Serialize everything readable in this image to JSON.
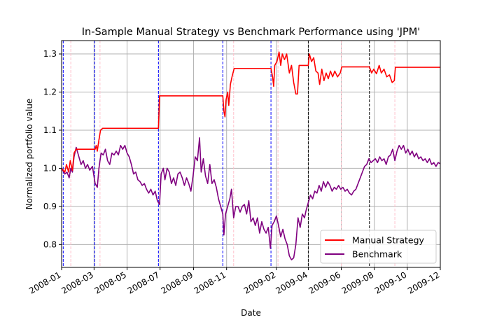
{
  "chart_data": {
    "type": "line",
    "title": "In-Sample Manual Strategy vs Benchmark Performance using 'JPM'",
    "xlabel": "Date",
    "ylabel": "Normalized portfolio value",
    "xlim": [
      "2008-01-01",
      "2009-12-01"
    ],
    "ylim": [
      0.74,
      1.335
    ],
    "x_ticks": [
      "2008-01",
      "2008-03",
      "2008-05",
      "2008-07",
      "2008-09",
      "2008-11",
      "2009-02",
      "2009-04",
      "2009-06",
      "2009-08",
      "2009-10",
      "2009-12"
    ],
    "y_ticks": [
      0.8,
      0.9,
      1.0,
      1.1,
      1.2,
      1.3
    ],
    "grid": true,
    "legend_position": "lower right",
    "series": [
      {
        "name": "Manual Strategy",
        "color": "#ff0000",
        "points": [
          [
            "2008-01-01",
            1.0
          ],
          [
            "2008-01-07",
            0.99
          ],
          [
            "2008-01-10",
            1.01
          ],
          [
            "2008-01-14",
            0.99
          ],
          [
            "2008-01-17",
            1.02
          ],
          [
            "2008-01-21",
            0.995
          ],
          [
            "2008-01-24",
            1.04
          ],
          [
            "2008-01-28",
            1.05
          ],
          [
            "2008-02-05",
            1.05
          ],
          [
            "2008-02-20",
            1.05
          ],
          [
            "2008-03-03",
            1.05
          ],
          [
            "2008-03-05",
            1.06
          ],
          [
            "2008-03-07",
            1.045
          ],
          [
            "2008-03-10",
            1.075
          ],
          [
            "2008-03-13",
            1.1
          ],
          [
            "2008-03-17",
            1.105
          ],
          [
            "2008-06-28",
            1.105
          ],
          [
            "2008-06-30",
            1.19
          ],
          [
            "2008-10-25",
            1.19
          ],
          [
            "2008-10-27",
            1.15
          ],
          [
            "2008-10-29",
            1.135
          ],
          [
            "2008-10-31",
            1.18
          ],
          [
            "2008-11-03",
            1.2
          ],
          [
            "2008-11-05",
            1.165
          ],
          [
            "2008-11-08",
            1.22
          ],
          [
            "2008-11-11",
            1.24
          ],
          [
            "2008-11-15",
            1.262
          ],
          [
            "2009-01-22",
            1.262
          ],
          [
            "2009-01-25",
            1.24
          ],
          [
            "2009-01-27",
            1.215
          ],
          [
            "2009-01-29",
            1.27
          ],
          [
            "2009-02-02",
            1.28
          ],
          [
            "2009-02-06",
            1.305
          ],
          [
            "2009-02-09",
            1.27
          ],
          [
            "2009-02-12",
            1.3
          ],
          [
            "2009-02-16",
            1.285
          ],
          [
            "2009-02-20",
            1.3
          ],
          [
            "2009-02-25",
            1.25
          ],
          [
            "2009-03-01",
            1.27
          ],
          [
            "2009-03-05",
            1.225
          ],
          [
            "2009-03-09",
            1.195
          ],
          [
            "2009-03-12",
            1.195
          ],
          [
            "2009-03-15",
            1.27
          ],
          [
            "2009-04-01",
            1.27
          ],
          [
            "2009-04-03",
            1.3
          ],
          [
            "2009-04-07",
            1.28
          ],
          [
            "2009-04-11",
            1.29
          ],
          [
            "2009-04-15",
            1.255
          ],
          [
            "2009-04-19",
            1.25
          ],
          [
            "2009-04-22",
            1.22
          ],
          [
            "2009-04-26",
            1.26
          ],
          [
            "2009-04-30",
            1.23
          ],
          [
            "2009-05-04",
            1.25
          ],
          [
            "2009-05-08",
            1.235
          ],
          [
            "2009-05-12",
            1.255
          ],
          [
            "2009-05-16",
            1.24
          ],
          [
            "2009-05-20",
            1.255
          ],
          [
            "2009-05-25",
            1.24
          ],
          [
            "2009-05-30",
            1.25
          ],
          [
            "2009-06-02",
            1.266
          ],
          [
            "2009-07-23",
            1.266
          ],
          [
            "2009-07-27",
            1.25
          ],
          [
            "2009-07-31",
            1.26
          ],
          [
            "2009-08-05",
            1.248
          ],
          [
            "2009-08-10",
            1.27
          ],
          [
            "2009-08-14",
            1.25
          ],
          [
            "2009-08-19",
            1.26
          ],
          [
            "2009-08-24",
            1.24
          ],
          [
            "2009-08-29",
            1.245
          ],
          [
            "2009-09-03",
            1.225
          ],
          [
            "2009-09-07",
            1.23
          ],
          [
            "2009-09-09",
            1.265
          ],
          [
            "2009-12-01",
            1.265
          ]
        ]
      },
      {
        "name": "Benchmark",
        "color": "#800080",
        "points": [
          [
            "2008-01-01",
            1.0
          ],
          [
            "2008-01-07",
            0.985
          ],
          [
            "2008-01-11",
            0.99
          ],
          [
            "2008-01-15",
            0.975
          ],
          [
            "2008-01-18",
            1.0
          ],
          [
            "2008-01-21",
            0.99
          ],
          [
            "2008-01-24",
            1.03
          ],
          [
            "2008-01-28",
            1.055
          ],
          [
            "2008-02-02",
            1.03
          ],
          [
            "2008-02-06",
            1.01
          ],
          [
            "2008-02-10",
            1.02
          ],
          [
            "2008-02-14",
            1.0
          ],
          [
            "2008-02-18",
            1.01
          ],
          [
            "2008-02-22",
            0.995
          ],
          [
            "2008-02-27",
            1.005
          ],
          [
            "2008-03-03",
            0.96
          ],
          [
            "2008-03-07",
            0.95
          ],
          [
            "2008-03-10",
            1.0
          ],
          [
            "2008-03-14",
            1.04
          ],
          [
            "2008-03-18",
            1.035
          ],
          [
            "2008-03-22",
            1.05
          ],
          [
            "2008-03-26",
            1.02
          ],
          [
            "2008-03-30",
            1.01
          ],
          [
            "2008-04-03",
            1.04
          ],
          [
            "2008-04-07",
            1.035
          ],
          [
            "2008-04-11",
            1.045
          ],
          [
            "2008-04-15",
            1.035
          ],
          [
            "2008-04-19",
            1.06
          ],
          [
            "2008-04-23",
            1.05
          ],
          [
            "2008-04-27",
            1.06
          ],
          [
            "2008-05-01",
            1.04
          ],
          [
            "2008-05-05",
            1.03
          ],
          [
            "2008-05-09",
            1.01
          ],
          [
            "2008-05-13",
            0.985
          ],
          [
            "2008-05-17",
            0.99
          ],
          [
            "2008-05-21",
            0.97
          ],
          [
            "2008-05-25",
            0.965
          ],
          [
            "2008-05-29",
            0.955
          ],
          [
            "2008-06-02",
            0.96
          ],
          [
            "2008-06-06",
            0.945
          ],
          [
            "2008-06-10",
            0.935
          ],
          [
            "2008-06-14",
            0.945
          ],
          [
            "2008-06-18",
            0.93
          ],
          [
            "2008-06-22",
            0.94
          ],
          [
            "2008-06-26",
            0.915
          ],
          [
            "2008-06-30",
            0.905
          ],
          [
            "2008-07-03",
            0.985
          ],
          [
            "2008-07-07",
            1.0
          ],
          [
            "2008-07-10",
            0.97
          ],
          [
            "2008-07-14",
            1.0
          ],
          [
            "2008-07-18",
            0.99
          ],
          [
            "2008-07-22",
            0.96
          ],
          [
            "2008-07-26",
            0.975
          ],
          [
            "2008-07-30",
            0.955
          ],
          [
            "2008-08-03",
            0.985
          ],
          [
            "2008-08-07",
            0.99
          ],
          [
            "2008-08-11",
            0.975
          ],
          [
            "2008-08-15",
            0.955
          ],
          [
            "2008-08-19",
            0.975
          ],
          [
            "2008-08-23",
            0.96
          ],
          [
            "2008-08-27",
            0.94
          ],
          [
            "2008-08-31",
            0.98
          ],
          [
            "2008-09-04",
            1.03
          ],
          [
            "2008-09-08",
            1.02
          ],
          [
            "2008-09-12",
            1.08
          ],
          [
            "2008-09-15",
            0.99
          ],
          [
            "2008-09-19",
            1.025
          ],
          [
            "2008-09-23",
            0.98
          ],
          [
            "2008-09-27",
            0.96
          ],
          [
            "2008-10-01",
            1.01
          ],
          [
            "2008-10-05",
            0.96
          ],
          [
            "2008-10-09",
            0.97
          ],
          [
            "2008-10-13",
            0.95
          ],
          [
            "2008-10-17",
            0.92
          ],
          [
            "2008-10-21",
            0.9
          ],
          [
            "2008-10-25",
            0.88
          ],
          [
            "2008-10-27",
            0.825
          ],
          [
            "2008-10-30",
            0.88
          ],
          [
            "2008-11-03",
            0.9
          ],
          [
            "2008-11-07",
            0.92
          ],
          [
            "2008-11-10",
            0.945
          ],
          [
            "2008-11-14",
            0.87
          ],
          [
            "2008-11-18",
            0.9
          ],
          [
            "2008-11-22",
            0.9
          ],
          [
            "2008-11-26",
            0.885
          ],
          [
            "2008-11-30",
            0.9
          ],
          [
            "2008-12-04",
            0.905
          ],
          [
            "2008-12-08",
            0.88
          ],
          [
            "2008-12-12",
            0.915
          ],
          [
            "2008-12-16",
            0.86
          ],
          [
            "2008-12-20",
            0.87
          ],
          [
            "2008-12-24",
            0.85
          ],
          [
            "2008-12-28",
            0.87
          ],
          [
            "2009-01-01",
            0.83
          ],
          [
            "2009-01-05",
            0.86
          ],
          [
            "2009-01-09",
            0.84
          ],
          [
            "2009-01-13",
            0.83
          ],
          [
            "2009-01-17",
            0.845
          ],
          [
            "2009-01-21",
            0.79
          ],
          [
            "2009-01-24",
            0.85
          ],
          [
            "2009-01-28",
            0.86
          ],
          [
            "2009-02-01",
            0.875
          ],
          [
            "2009-02-05",
            0.85
          ],
          [
            "2009-02-09",
            0.82
          ],
          [
            "2009-02-13",
            0.84
          ],
          [
            "2009-02-17",
            0.815
          ],
          [
            "2009-02-21",
            0.8
          ],
          [
            "2009-02-25",
            0.77
          ],
          [
            "2009-03-01",
            0.76
          ],
          [
            "2009-03-05",
            0.765
          ],
          [
            "2009-03-09",
            0.8
          ],
          [
            "2009-03-13",
            0.87
          ],
          [
            "2009-03-17",
            0.845
          ],
          [
            "2009-03-21",
            0.88
          ],
          [
            "2009-03-25",
            0.87
          ],
          [
            "2009-03-28",
            0.89
          ],
          [
            "2009-04-01",
            0.91
          ],
          [
            "2009-04-05",
            0.93
          ],
          [
            "2009-04-09",
            0.92
          ],
          [
            "2009-04-13",
            0.94
          ],
          [
            "2009-04-17",
            0.935
          ],
          [
            "2009-04-21",
            0.955
          ],
          [
            "2009-04-25",
            0.94
          ],
          [
            "2009-04-29",
            0.965
          ],
          [
            "2009-05-03",
            0.95
          ],
          [
            "2009-05-07",
            0.965
          ],
          [
            "2009-05-11",
            0.955
          ],
          [
            "2009-05-15",
            0.94
          ],
          [
            "2009-05-19",
            0.95
          ],
          [
            "2009-05-23",
            0.945
          ],
          [
            "2009-05-27",
            0.955
          ],
          [
            "2009-05-31",
            0.945
          ],
          [
            "2009-06-04",
            0.95
          ],
          [
            "2009-06-08",
            0.94
          ],
          [
            "2009-06-12",
            0.945
          ],
          [
            "2009-06-16",
            0.935
          ],
          [
            "2009-06-20",
            0.93
          ],
          [
            "2009-06-24",
            0.94
          ],
          [
            "2009-06-28",
            0.945
          ],
          [
            "2009-07-02",
            0.96
          ],
          [
            "2009-07-06",
            0.975
          ],
          [
            "2009-07-10",
            0.99
          ],
          [
            "2009-07-14",
            1.005
          ],
          [
            "2009-07-18",
            1.01
          ],
          [
            "2009-07-22",
            1.025
          ],
          [
            "2009-07-26",
            1.015
          ],
          [
            "2009-07-30",
            1.02
          ],
          [
            "2009-08-03",
            1.025
          ],
          [
            "2009-08-07",
            1.015
          ],
          [
            "2009-08-11",
            1.03
          ],
          [
            "2009-08-15",
            1.02
          ],
          [
            "2009-08-19",
            1.025
          ],
          [
            "2009-08-23",
            1.01
          ],
          [
            "2009-08-27",
            1.03
          ],
          [
            "2009-08-31",
            1.035
          ],
          [
            "2009-09-04",
            1.05
          ],
          [
            "2009-09-08",
            1.02
          ],
          [
            "2009-09-12",
            1.045
          ],
          [
            "2009-09-16",
            1.06
          ],
          [
            "2009-09-20",
            1.05
          ],
          [
            "2009-09-24",
            1.06
          ],
          [
            "2009-09-28",
            1.04
          ],
          [
            "2009-10-02",
            1.05
          ],
          [
            "2009-10-06",
            1.035
          ],
          [
            "2009-10-10",
            1.045
          ],
          [
            "2009-10-14",
            1.03
          ],
          [
            "2009-10-18",
            1.04
          ],
          [
            "2009-10-22",
            1.025
          ],
          [
            "2009-10-26",
            1.03
          ],
          [
            "2009-10-30",
            1.02
          ],
          [
            "2009-11-03",
            1.025
          ],
          [
            "2009-11-07",
            1.015
          ],
          [
            "2009-11-11",
            1.025
          ],
          [
            "2009-11-15",
            1.01
          ],
          [
            "2009-11-19",
            1.015
          ],
          [
            "2009-11-23",
            1.005
          ],
          [
            "2009-11-27",
            1.015
          ],
          [
            "2009-12-01",
            1.012
          ]
        ]
      }
    ],
    "vertical_markers": [
      {
        "style": "long-entry",
        "color": "#0000ff",
        "dashed": true,
        "dates": [
          "2008-01-04",
          "2008-03-02",
          "2008-06-28",
          "2008-10-25",
          "2009-01-22"
        ]
      },
      {
        "style": "short-entry",
        "color": "#000000",
        "dashed": true,
        "dates": [
          "2009-04-01",
          "2009-07-23"
        ]
      },
      {
        "style": "exit",
        "color": "#ffc0cb",
        "dashed": true,
        "dates": [
          "2008-01-18",
          "2008-03-12",
          "2008-11-14",
          "2009-02-04",
          "2009-06-01",
          "2009-09-08"
        ]
      }
    ]
  }
}
